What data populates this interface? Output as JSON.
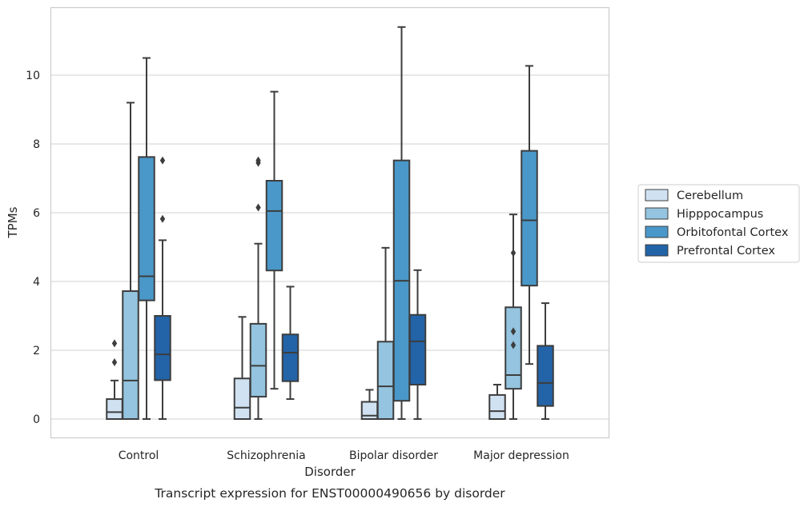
{
  "chart_data": {
    "type": "box",
    "title": "",
    "caption": "Transcript expression for ENST00000490656 by disorder",
    "xlabel": "Disorder",
    "ylabel": "TPMs",
    "ylim": [
      -0.55,
      12.0
    ],
    "yticks": [
      0,
      2,
      4,
      6,
      8,
      10
    ],
    "grid": "horizontal",
    "legend_position": "right",
    "categories": [
      "Control",
      "Schizophrenia",
      "Bipolar disorder",
      "Major depression"
    ],
    "series": [
      {
        "name": "Cerebellum",
        "color": "#d0e1f2",
        "boxes": [
          {
            "whislo": 0.0,
            "q1": 0.0,
            "med": 0.2,
            "q3": 0.58,
            "whishi": 1.12,
            "fliers": [
              1.65,
              2.2
            ]
          },
          {
            "whislo": 0.0,
            "q1": 0.0,
            "med": 0.33,
            "q3": 1.18,
            "whishi": 2.97,
            "fliers": []
          },
          {
            "whislo": 0.0,
            "q1": 0.0,
            "med": 0.1,
            "q3": 0.5,
            "whishi": 0.85,
            "fliers": []
          },
          {
            "whislo": 0.0,
            "q1": 0.0,
            "med": 0.23,
            "q3": 0.7,
            "whishi": 1.0,
            "fliers": []
          }
        ]
      },
      {
        "name": "Hipppocampus",
        "color": "#94c4df",
        "boxes": [
          {
            "whislo": 0.0,
            "q1": 0.0,
            "med": 1.12,
            "q3": 3.72,
            "whishi": 9.2,
            "fliers": []
          },
          {
            "whislo": 0.0,
            "q1": 0.65,
            "med": 1.55,
            "q3": 2.77,
            "whishi": 5.1,
            "fliers": [
              6.15,
              7.45,
              7.52
            ]
          },
          {
            "whislo": 0.0,
            "q1": 0.0,
            "med": 0.95,
            "q3": 2.25,
            "whishi": 4.98,
            "fliers": []
          },
          {
            "whislo": 0.0,
            "q1": 0.88,
            "med": 1.28,
            "q3": 3.25,
            "whishi": 5.95,
            "fliers": [
              2.15,
              2.55,
              4.83
            ]
          }
        ]
      },
      {
        "name": "Orbitofontal Cortex",
        "color": "#4a98c9",
        "boxes": [
          {
            "whislo": 0.0,
            "q1": 3.45,
            "med": 4.15,
            "q3": 7.62,
            "whishi": 10.5,
            "fliers": []
          },
          {
            "whislo": 0.88,
            "q1": 4.32,
            "med": 6.05,
            "q3": 6.93,
            "whishi": 9.52,
            "fliers": []
          },
          {
            "whislo": 0.0,
            "q1": 0.53,
            "med": 4.02,
            "q3": 7.52,
            "whishi": 11.4,
            "fliers": []
          },
          {
            "whislo": 1.6,
            "q1": 3.88,
            "med": 5.78,
            "q3": 7.8,
            "whishi": 10.27,
            "fliers": []
          }
        ]
      },
      {
        "name": "Prefrontal Cortex",
        "color": "#2363a8",
        "boxes": [
          {
            "whislo": 0.0,
            "q1": 1.13,
            "med": 1.88,
            "q3": 3.0,
            "whishi": 5.2,
            "fliers": [
              5.82,
              7.52
            ]
          },
          {
            "whislo": 0.58,
            "q1": 1.1,
            "med": 1.93,
            "q3": 2.46,
            "whishi": 3.85,
            "fliers": []
          },
          {
            "whislo": 0.0,
            "q1": 1.0,
            "med": 2.26,
            "q3": 3.03,
            "whishi": 4.33,
            "fliers": []
          },
          {
            "whislo": 0.0,
            "q1": 0.38,
            "med": 1.05,
            "q3": 2.13,
            "whishi": 3.37,
            "fliers": []
          }
        ]
      }
    ]
  }
}
